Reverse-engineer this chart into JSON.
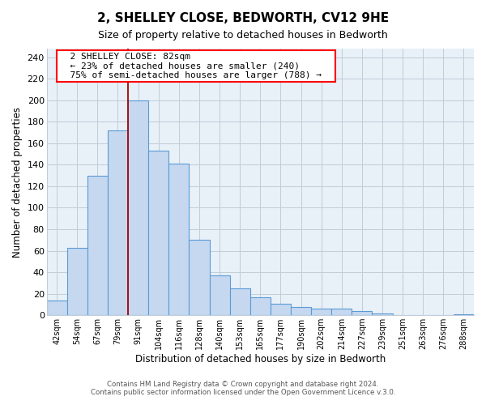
{
  "title": "2, SHELLEY CLOSE, BEDWORTH, CV12 9HE",
  "subtitle": "Size of property relative to detached houses in Bedworth",
  "xlabel": "Distribution of detached houses by size in Bedworth",
  "ylabel": "Number of detached properties",
  "bar_labels": [
    "42sqm",
    "54sqm",
    "67sqm",
    "79sqm",
    "91sqm",
    "104sqm",
    "116sqm",
    "128sqm",
    "140sqm",
    "153sqm",
    "165sqm",
    "177sqm",
    "190sqm",
    "202sqm",
    "214sqm",
    "227sqm",
    "239sqm",
    "251sqm",
    "263sqm",
    "276sqm",
    "288sqm"
  ],
  "bar_heights": [
    14,
    63,
    130,
    172,
    200,
    153,
    141,
    70,
    37,
    25,
    17,
    11,
    8,
    6,
    6,
    4,
    2,
    0,
    0,
    0,
    1
  ],
  "bar_color": "#c5d8f0",
  "bar_edge_color": "#5b9bd5",
  "ylim_max": 248,
  "yticks": [
    0,
    20,
    40,
    60,
    80,
    100,
    120,
    140,
    160,
    180,
    200,
    220,
    240
  ],
  "property_line_x": 3.5,
  "annotation_title": "2 SHELLEY CLOSE: 82sqm",
  "annotation_line1": "← 23% of detached houses are smaller (240)",
  "annotation_line2": "75% of semi-detached houses are larger (788) →",
  "footer1": "Contains HM Land Registry data © Crown copyright and database right 2024.",
  "footer2": "Contains public sector information licensed under the Open Government Licence v.3.0.",
  "background_color": "#ffffff",
  "plot_bg_color": "#e8f0f8",
  "grid_color": "#c0ccd8"
}
